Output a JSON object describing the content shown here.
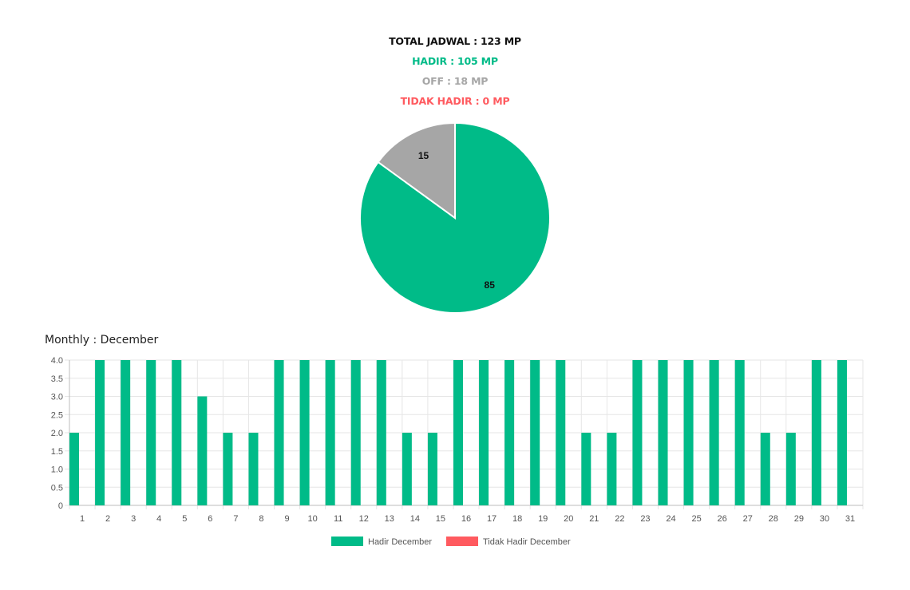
{
  "summary": {
    "total": "TOTAL JADWAL : 123 MP",
    "hadir": "HADIR : 105 MP",
    "off": "OFF : 18 MP",
    "tidak_hadir": "TIDAK HADIR : 0 MP"
  },
  "monthly_title": "Monthly : December",
  "colors": {
    "hadir": "#00bb88",
    "off": "#a6a6a6",
    "tidak_hadir": "#ff5a5f",
    "grid": "#e6e6e6",
    "axis": "#bdbdbd"
  },
  "chart_data": [
    {
      "type": "pie",
      "title": "",
      "slices": [
        {
          "label": "85",
          "value": 85,
          "color": "#00bb88"
        },
        {
          "label": "15",
          "value": 15,
          "color": "#a6a6a6"
        }
      ]
    },
    {
      "type": "bar",
      "title": "Monthly : December",
      "categories": [
        "1",
        "2",
        "3",
        "4",
        "5",
        "6",
        "7",
        "8",
        "9",
        "10",
        "11",
        "12",
        "13",
        "14",
        "15",
        "16",
        "17",
        "18",
        "19",
        "20",
        "21",
        "22",
        "23",
        "24",
        "25",
        "26",
        "27",
        "28",
        "29",
        "30",
        "31"
      ],
      "series": [
        {
          "name": "Hadir December",
          "color": "#00bb88",
          "values": [
            2,
            4,
            4,
            4,
            4,
            3,
            2,
            2,
            4,
            4,
            4,
            4,
            4,
            2,
            2,
            4,
            4,
            4,
            4,
            4,
            2,
            2,
            4,
            4,
            4,
            4,
            4,
            2,
            2,
            4,
            4
          ]
        },
        {
          "name": "Tidak Hadir December",
          "color": "#ff5a5f",
          "values": [
            0,
            0,
            0,
            0,
            0,
            0,
            0,
            0,
            0,
            0,
            0,
            0,
            0,
            0,
            0,
            0,
            0,
            0,
            0,
            0,
            0,
            0,
            0,
            0,
            0,
            0,
            0,
            0,
            0,
            0,
            0
          ]
        }
      ],
      "ylim": [
        0,
        4
      ],
      "yticks": [
        "0",
        "0.5",
        "1.0",
        "1.5",
        "2.0",
        "2.5",
        "3.0",
        "3.5",
        "4.0"
      ],
      "grid": true,
      "legend": "bottom"
    }
  ]
}
